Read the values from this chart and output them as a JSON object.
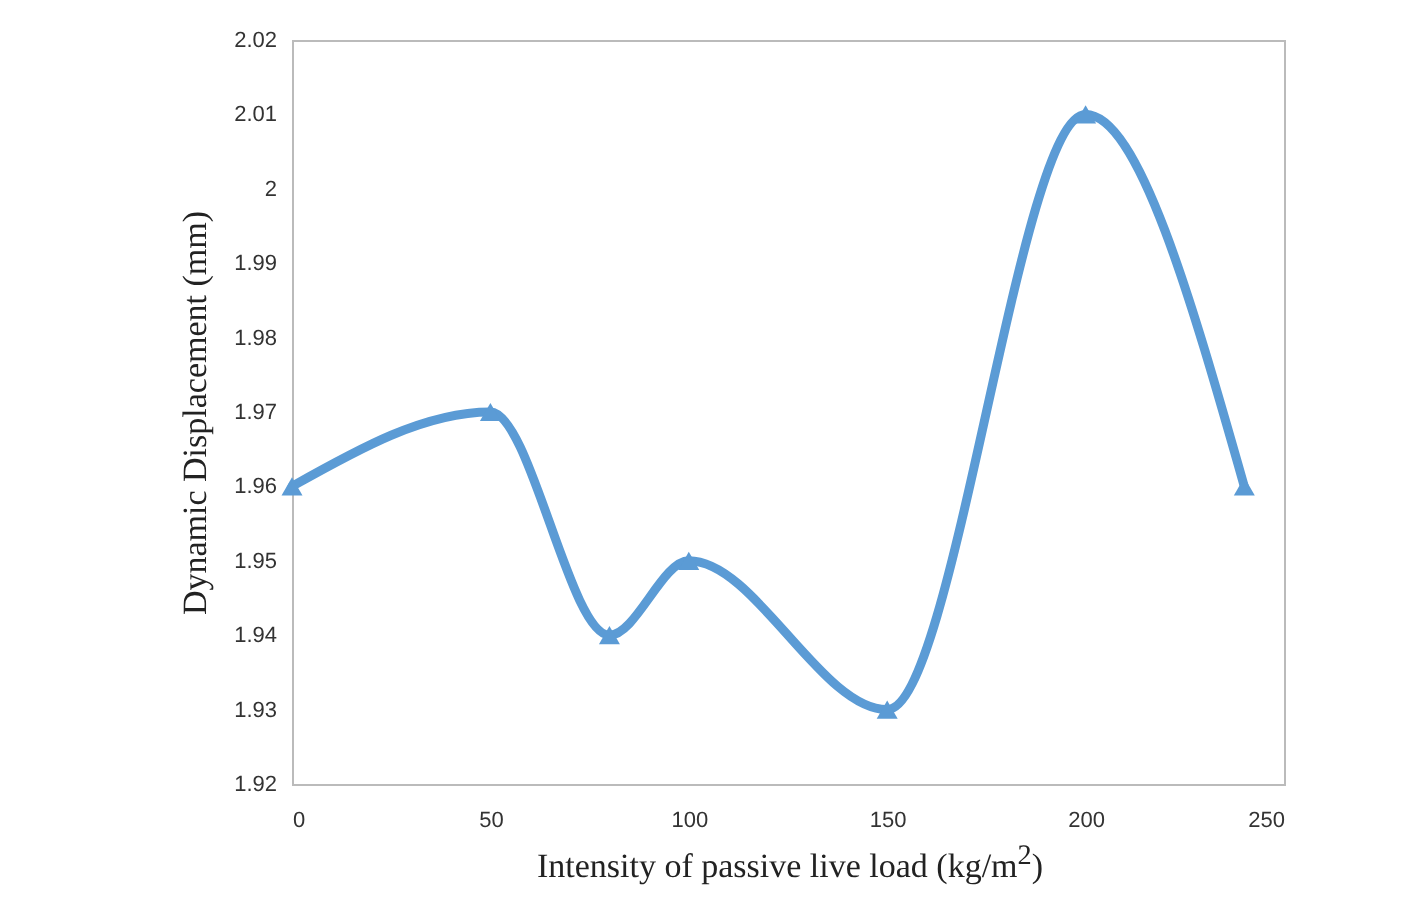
{
  "chart_data": {
    "type": "line",
    "xlabel": "Intensity of  passive live load (kg/m$^{2}$)",
    "ylabel": "Dynamic Displacement (mm)",
    "x": [
      0,
      50,
      80,
      100,
      150,
      200,
      240
    ],
    "series": [
      {
        "color": "#5b9bd5",
        "values": [
          1.96,
          1.97,
          1.94,
          1.95,
          1.93,
          2.01,
          1.96
        ]
      }
    ],
    "xlim": [
      0,
      250
    ],
    "xticks": [
      0,
      50,
      100,
      150,
      200,
      250
    ],
    "ylim": [
      1.92,
      2.02
    ],
    "yticks": [
      1.92,
      1.93,
      1.94,
      1.95,
      1.96,
      1.97,
      1.98,
      1.99,
      2,
      2.01,
      2.02
    ],
    "grid": false,
    "legend": false,
    "marker": "triangle",
    "line_style": "solid"
  }
}
